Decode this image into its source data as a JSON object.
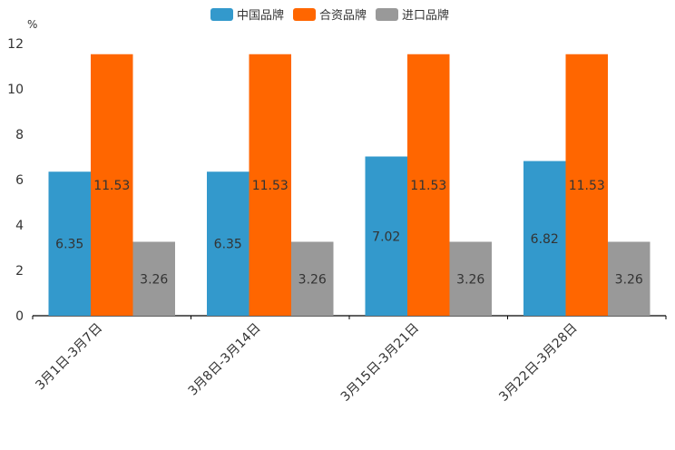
{
  "chart_data": {
    "type": "bar",
    "ylabel": "%",
    "ylim": [
      0,
      12
    ],
    "yticks": [
      0,
      2,
      4,
      6,
      8,
      10,
      12
    ],
    "categories": [
      "3月1日-3月7日",
      "3月8日-3月14日",
      "3月15日-3月21日",
      "3月22日-3月28日"
    ],
    "series": [
      {
        "name": "中国品牌",
        "color": "#3399CC",
        "values": [
          6.35,
          6.35,
          7.02,
          6.82
        ],
        "labels": [
          "6.35",
          "6.35",
          "7.02",
          "6.82"
        ]
      },
      {
        "name": "合资品牌",
        "color": "#FF6600",
        "values": [
          11.53,
          11.53,
          11.53,
          11.53
        ],
        "labels": [
          "11.53",
          "11.53",
          "11.53",
          "11.53"
        ]
      },
      {
        "name": "进口品牌",
        "color": "#999999",
        "values": [
          3.26,
          3.26,
          3.26,
          3.26
        ],
        "labels": [
          "3.26",
          "3.26",
          "3.26",
          "3.26"
        ]
      }
    ],
    "legend_position": "top-center",
    "grid": false
  }
}
